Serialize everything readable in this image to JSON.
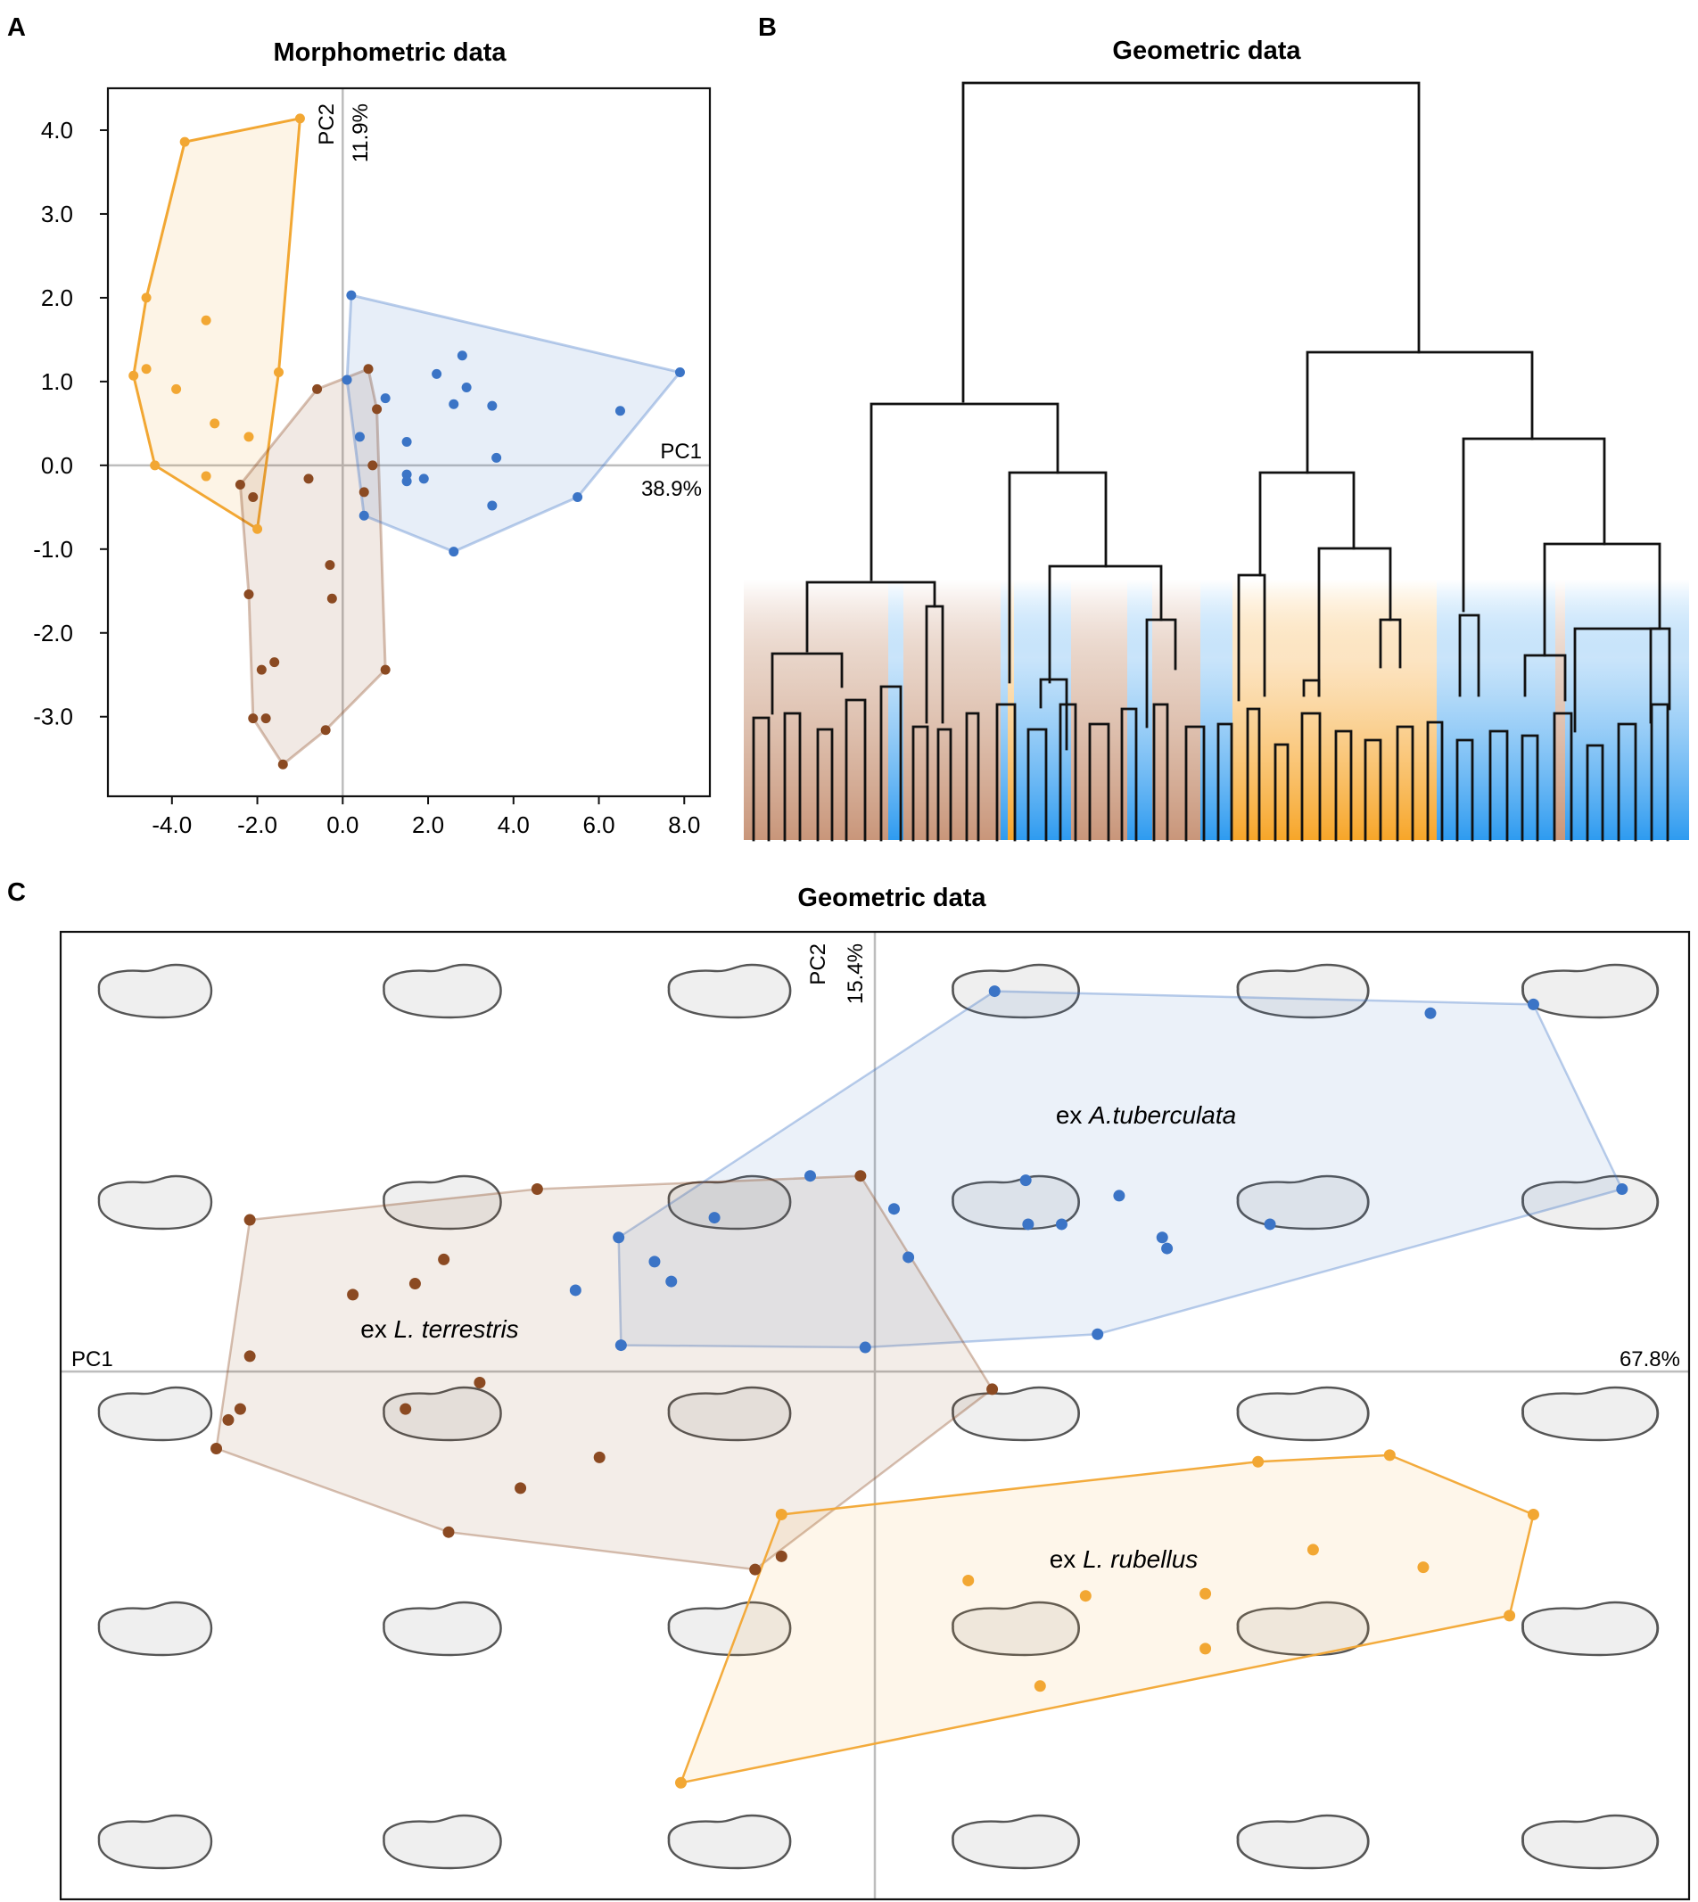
{
  "panels": {
    "a": "A",
    "b": "B",
    "c": "C"
  },
  "colors": {
    "terrestris": "#8B4A22",
    "rubellus": "#F2A733",
    "tuberculata": "#3B74C6",
    "axis": "#bdbdbd",
    "frame": "#111111"
  },
  "chart_data": [
    {
      "id": "A",
      "type": "scatter",
      "title": "Morphometric data",
      "xlim": [
        -5.5,
        8.6
      ],
      "ylim": [
        -3.95,
        4.5
      ],
      "xticks": [
        -4.0,
        -2.0,
        0.0,
        2.0,
        4.0,
        6.0,
        8.0
      ],
      "xtick_labels": [
        "-4.0",
        "-2.0",
        "0.0",
        "2.0",
        "4.0",
        "6.0",
        "8.0"
      ],
      "yticks": [
        4.0,
        3.0,
        2.0,
        1.0,
        0.0,
        -1.0,
        -2.0,
        -3.0
      ],
      "ytick_labels": [
        "4.0",
        "3.0",
        "2.0",
        "1.0",
        "0.0",
        "-1.0",
        "-2.0",
        "-3.0"
      ],
      "xlabel": "PC1",
      "xlabel_pct": "38.9%",
      "ylabel": "PC2",
      "ylabel_pct": "11.9%",
      "series": [
        {
          "name": "rubellus",
          "color": "#F2A733",
          "points": [
            [
              -1.0,
              4.14
            ],
            [
              -3.7,
              3.86
            ],
            [
              -4.6,
              2.0
            ],
            [
              -3.2,
              1.73
            ],
            [
              -4.6,
              1.15
            ],
            [
              -4.9,
              1.07
            ],
            [
              -3.9,
              0.91
            ],
            [
              -3.0,
              0.5
            ],
            [
              -2.2,
              0.34
            ],
            [
              -4.4,
              0.0
            ],
            [
              -3.2,
              -0.13
            ],
            [
              -1.5,
              1.11
            ],
            [
              -2.0,
              -0.76
            ]
          ],
          "hull": [
            [
              -1.0,
              4.14
            ],
            [
              -3.7,
              3.86
            ],
            [
              -4.6,
              2.0
            ],
            [
              -4.9,
              1.07
            ],
            [
              -4.4,
              0.0
            ],
            [
              -2.0,
              -0.76
            ],
            [
              -1.5,
              1.11
            ]
          ]
        },
        {
          "name": "terrestris",
          "color": "#8B4A22",
          "points": [
            [
              0.6,
              1.15
            ],
            [
              -0.6,
              0.91
            ],
            [
              0.8,
              0.67
            ],
            [
              0.7,
              0.0
            ],
            [
              -0.8,
              -0.16
            ],
            [
              -2.4,
              -0.23
            ],
            [
              -2.1,
              -0.38
            ],
            [
              0.5,
              -0.32
            ],
            [
              -0.3,
              -1.19
            ],
            [
              -0.25,
              -1.59
            ],
            [
              -2.2,
              -1.54
            ],
            [
              -1.6,
              -2.35
            ],
            [
              -1.9,
              -2.44
            ],
            [
              1.0,
              -2.44
            ],
            [
              -2.1,
              -3.02
            ],
            [
              -1.8,
              -3.02
            ],
            [
              -0.4,
              -3.16
            ],
            [
              -1.4,
              -3.57
            ]
          ],
          "hull": [
            [
              0.6,
              1.15
            ],
            [
              -0.6,
              0.91
            ],
            [
              -2.4,
              -0.23
            ],
            [
              -2.2,
              -1.54
            ],
            [
              -2.1,
              -3.02
            ],
            [
              -1.4,
              -3.57
            ],
            [
              -0.4,
              -3.16
            ],
            [
              1.0,
              -2.44
            ],
            [
              0.8,
              0.67
            ]
          ]
        },
        {
          "name": "tuberculata",
          "color": "#3B74C6",
          "points": [
            [
              0.2,
              2.03
            ],
            [
              2.8,
              1.31
            ],
            [
              7.9,
              1.11
            ],
            [
              2.2,
              1.09
            ],
            [
              2.9,
              0.93
            ],
            [
              0.1,
              1.02
            ],
            [
              1.0,
              0.8
            ],
            [
              2.6,
              0.73
            ],
            [
              3.5,
              0.71
            ],
            [
              6.5,
              0.65
            ],
            [
              0.4,
              0.34
            ],
            [
              1.5,
              0.28
            ],
            [
              3.6,
              0.09
            ],
            [
              1.5,
              -0.11
            ],
            [
              1.9,
              -0.16
            ],
            [
              1.5,
              -0.19
            ],
            [
              5.5,
              -0.38
            ],
            [
              3.5,
              -0.48
            ],
            [
              0.5,
              -0.6
            ],
            [
              2.6,
              -1.03
            ]
          ],
          "hull": [
            [
              0.2,
              2.03
            ],
            [
              7.9,
              1.11
            ],
            [
              5.5,
              -0.38
            ],
            [
              2.6,
              -1.03
            ],
            [
              0.5,
              -0.6
            ],
            [
              0.1,
              1.02
            ]
          ]
        }
      ]
    },
    {
      "id": "B",
      "type": "dendrogram",
      "title": "Geometric data",
      "leaf_groups": [
        "terrestris",
        "tuberculata",
        "terrestris",
        "tuberculata",
        "rubellus",
        "tuberculata",
        "terrestris",
        "tuberculata",
        "terrestris",
        "tuberculata",
        "rubellus",
        "tuberculata",
        "terrestris",
        "tuberculata"
      ]
    },
    {
      "id": "C",
      "type": "scatter",
      "title": "Geometric data",
      "xlim": [
        -0.34,
        0.34
      ],
      "ylim": [
        -0.24,
        0.2
      ],
      "xlabel": "PC1",
      "xlabel_pct": "67.8%",
      "ylabel": "PC2",
      "ylabel_pct": "15.4%",
      "series": [
        {
          "name": "tuberculata",
          "label_prefix": "ex ",
          "label_species": "A.tuberculata",
          "color": "#3B74C6",
          "points": [
            [
              0.05,
              0.173
            ],
            [
              0.232,
              0.163
            ],
            [
              0.275,
              0.167
            ],
            [
              -0.027,
              0.089
            ],
            [
              0.063,
              0.087
            ],
            [
              0.312,
              0.083
            ],
            [
              0.102,
              0.08
            ],
            [
              0.008,
              0.074
            ],
            [
              0.064,
              0.067
            ],
            [
              0.078,
              0.067
            ],
            [
              0.165,
              0.067
            ],
            [
              -0.067,
              0.07
            ],
            [
              0.12,
              0.061
            ],
            [
              -0.107,
              0.061
            ],
            [
              0.014,
              0.052
            ],
            [
              0.122,
              0.056
            ],
            [
              -0.092,
              0.05
            ],
            [
              -0.085,
              0.041
            ],
            [
              -0.125,
              0.037
            ],
            [
              0.093,
              0.017
            ],
            [
              -0.106,
              0.012
            ],
            [
              -0.004,
              0.011
            ]
          ],
          "hull": [
            [
              0.05,
              0.173
            ],
            [
              0.275,
              0.167
            ],
            [
              0.312,
              0.083
            ],
            [
              0.093,
              0.017
            ],
            [
              -0.004,
              0.011
            ],
            [
              -0.106,
              0.012
            ],
            [
              -0.107,
              0.061
            ]
          ]
        },
        {
          "name": "terrestris",
          "label_prefix": "ex ",
          "label_species": "L. terrestris",
          "color": "#8B4A22",
          "points": [
            [
              -0.141,
              0.083
            ],
            [
              -0.006,
              0.089
            ],
            [
              -0.261,
              0.069
            ],
            [
              -0.18,
              0.051
            ],
            [
              -0.192,
              0.04
            ],
            [
              -0.218,
              0.035
            ],
            [
              -0.261,
              0.007
            ],
            [
              -0.165,
              -0.005
            ],
            [
              -0.196,
              -0.017
            ],
            [
              -0.265,
              -0.017
            ],
            [
              -0.27,
              -0.022
            ],
            [
              -0.275,
              -0.035
            ],
            [
              0.049,
              -0.008
            ],
            [
              -0.115,
              -0.039
            ],
            [
              -0.148,
              -0.053
            ],
            [
              -0.178,
              -0.073
            ],
            [
              -0.039,
              -0.084
            ],
            [
              -0.05,
              -0.09
            ]
          ],
          "hull": [
            [
              -0.141,
              0.083
            ],
            [
              -0.006,
              0.089
            ],
            [
              0.049,
              -0.008
            ],
            [
              -0.05,
              -0.09
            ],
            [
              -0.178,
              -0.073
            ],
            [
              -0.275,
              -0.035
            ],
            [
              -0.261,
              0.069
            ]
          ]
        },
        {
          "name": "rubellus",
          "label_prefix": "ex ",
          "label_species": "L. rubellus",
          "color": "#F2A733",
          "points": [
            [
              0.16,
              -0.041
            ],
            [
              0.215,
              -0.038
            ],
            [
              0.275,
              -0.065
            ],
            [
              -0.039,
              -0.065
            ],
            [
              0.183,
              -0.081
            ],
            [
              0.229,
              -0.089
            ],
            [
              0.039,
              -0.095
            ],
            [
              0.138,
              -0.101
            ],
            [
              0.088,
              -0.102
            ],
            [
              0.265,
              -0.111
            ],
            [
              0.138,
              -0.126
            ],
            [
              0.069,
              -0.143
            ],
            [
              -0.081,
              -0.187
            ]
          ],
          "hull": [
            [
              0.215,
              -0.038
            ],
            [
              0.275,
              -0.065
            ],
            [
              0.265,
              -0.111
            ],
            [
              -0.081,
              -0.187
            ],
            [
              -0.039,
              -0.065
            ],
            [
              0.16,
              -0.041
            ]
          ]
        }
      ]
    }
  ]
}
